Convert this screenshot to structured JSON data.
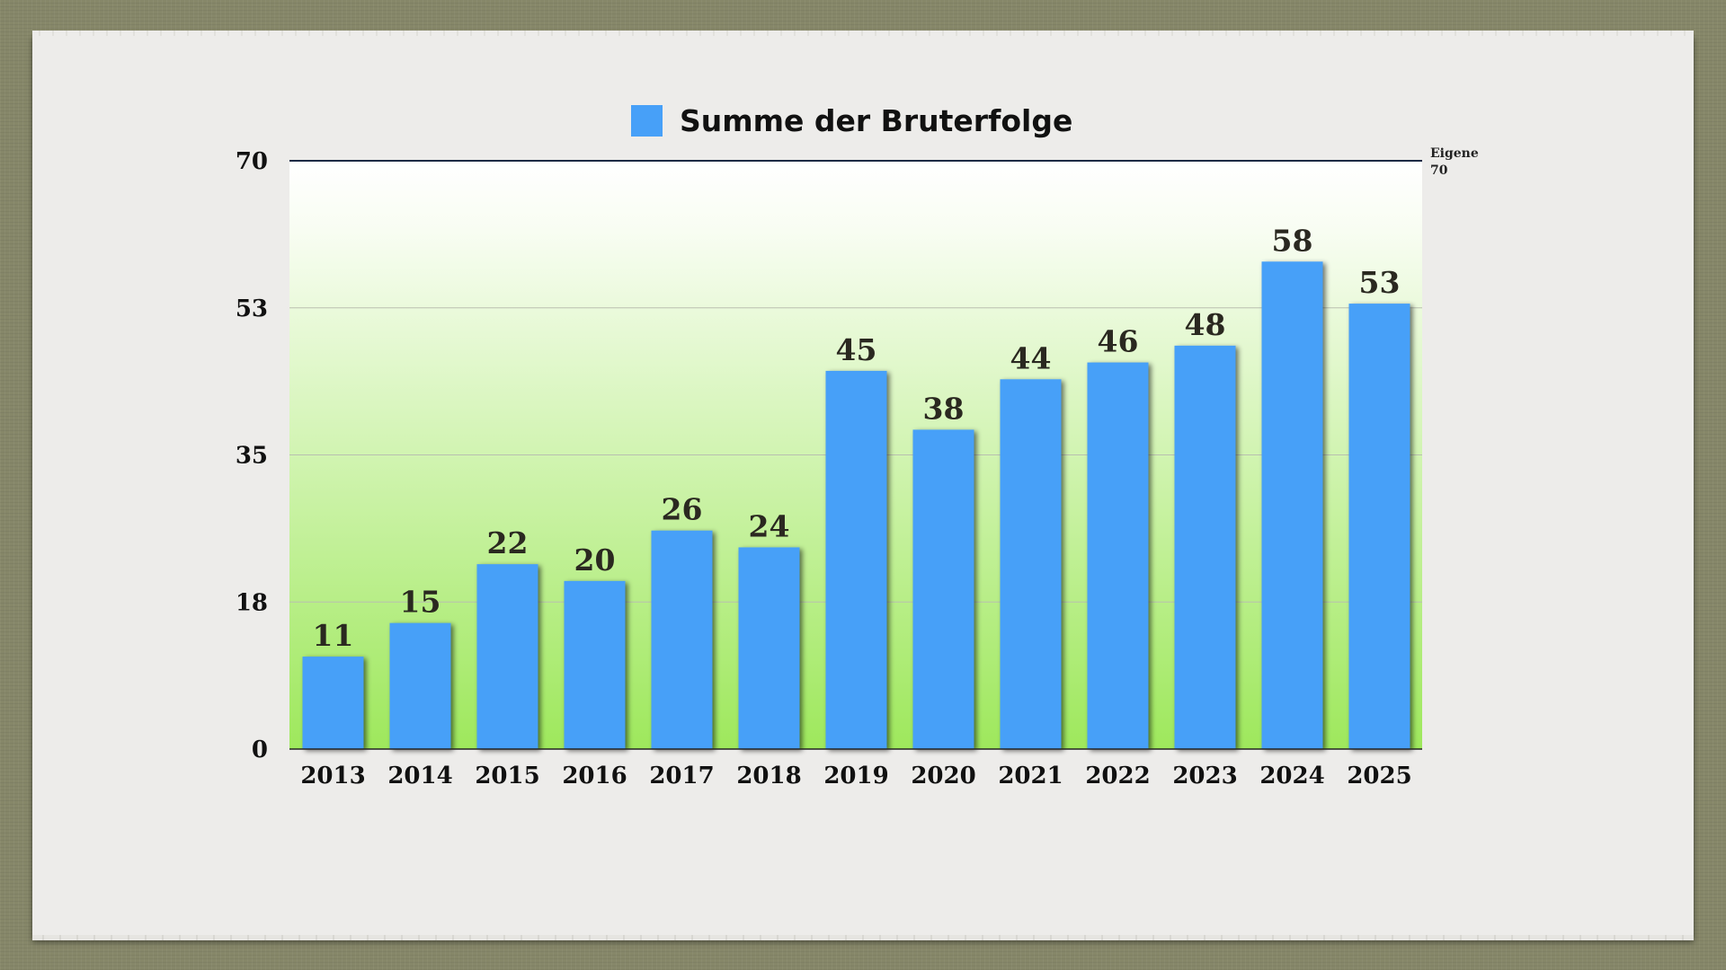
{
  "chart_data": {
    "type": "bar",
    "categories": [
      "2013",
      "2014",
      "2015",
      "2016",
      "2017",
      "2018",
      "2019",
      "2020",
      "2021",
      "2022",
      "2023",
      "2024",
      "2025"
    ],
    "series": [
      {
        "name": "Summe der Bruterfolge",
        "values": [
          11,
          15,
          22,
          20,
          26,
          24,
          45,
          38,
          44,
          46,
          48,
          58,
          53
        ],
        "color": "#47a0f8"
      }
    ],
    "yticks": [
      "0",
      "18",
      "35",
      "53",
      "70"
    ],
    "ylim": [
      0,
      70
    ],
    "grid": true,
    "legend": "top-center",
    "corner_note": {
      "line1": "Eigene",
      "line2": "70"
    },
    "plot_background": [
      "#ffffff",
      "#9ee85c"
    ]
  }
}
